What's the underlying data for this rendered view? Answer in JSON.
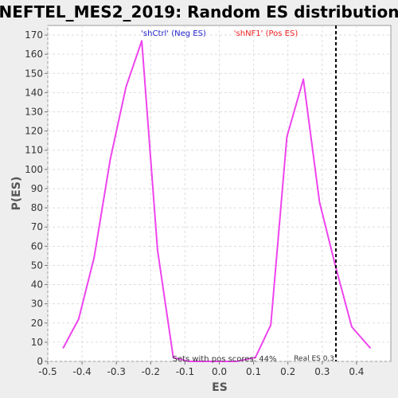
{
  "chart_data": {
    "type": "line",
    "title": "NEFTEL_MES2_2019: Random ES distribution",
    "xlabel": "ES",
    "ylabel": "P(ES)",
    "xlim": [
      -0.5,
      0.5
    ],
    "ylim": [
      0,
      175
    ],
    "x_ticks": [
      -0.5,
      -0.4,
      -0.3,
      -0.2,
      -0.1,
      0.0,
      0.1,
      0.2,
      0.3,
      0.4
    ],
    "x_tick_labels": [
      "-0.5",
      "-0.4",
      "-0.3",
      "-0.2",
      "-0.1",
      "0.0",
      "0.1",
      "0.2",
      "0.3",
      "0.4"
    ],
    "y_ticks": [
      0,
      10,
      20,
      30,
      40,
      50,
      60,
      70,
      80,
      90,
      100,
      110,
      120,
      130,
      140,
      150,
      160,
      170
    ],
    "grid": true,
    "series": [
      {
        "color": "#ee44ee",
        "x": [
          -0.455,
          -0.41,
          -0.365,
          -0.318,
          -0.272,
          -0.226,
          -0.18,
          -0.134,
          -0.088,
          -0.042,
          0.004,
          0.05,
          0.105,
          0.15,
          0.197,
          0.245,
          0.292,
          0.338,
          0.386,
          0.44
        ],
        "y": [
          7,
          22,
          54,
          105,
          143,
          167,
          58,
          2,
          0,
          0,
          0,
          0,
          2,
          19,
          117,
          147,
          83,
          50,
          18,
          7
        ]
      }
    ],
    "real_es": {
      "x": 0.34,
      "label": "Real ES 0.3",
      "color": "#000000"
    },
    "annotations": [
      {
        "text": "'shCtrl' (Neg ES)",
        "color": "#2222cc"
      },
      {
        "text": "'shNF1' (Pos ES)",
        "color": "#ee2222"
      },
      {
        "text": "Sets with pos scores: 44%",
        "color": "#333333"
      }
    ],
    "colors": {
      "background": "#ffffff",
      "outer": "#eeeeee",
      "grid": "#dddddd",
      "axis": "#777777"
    }
  }
}
